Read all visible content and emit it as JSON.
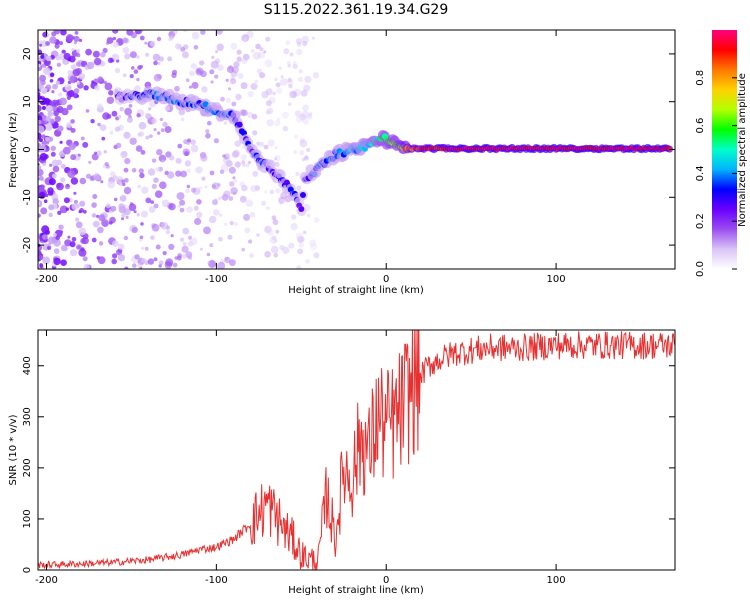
{
  "title": "S115.2022.361.19.34.G29",
  "colors": {
    "snr_line": "#e83030",
    "colormap": [
      "#ffffff",
      "#d9c4f7",
      "#9b4df0",
      "#6a00ff",
      "#0000ff",
      "#00b4ff",
      "#00ffc8",
      "#00ff00",
      "#b4ff00",
      "#ffd200",
      "#ff7800",
      "#ff0000",
      "#ff0080"
    ]
  },
  "chart_data": [
    {
      "type": "heatmap",
      "xlabel": "Height of straight line (km)",
      "ylabel": "Frequency (Hz)",
      "xlim": [
        -205,
        170
      ],
      "ylim": [
        -25,
        25
      ],
      "xticks": [
        -200,
        -100,
        0,
        100
      ],
      "yticks": [
        -20,
        -10,
        0,
        10,
        20
      ],
      "colorbar": {
        "label": "Normalized spectral amplitude",
        "range": [
          0,
          1
        ],
        "ticks": [
          "0.0",
          "0.2",
          "0.4",
          "0.6",
          "0.8"
        ]
      },
      "ridge": [
        {
          "x": -158,
          "y": 11,
          "v": 0.25
        },
        {
          "x": -150,
          "y": 11,
          "v": 0.3
        },
        {
          "x": -140,
          "y": 11.5,
          "v": 0.35
        },
        {
          "x": -130,
          "y": 11,
          "v": 0.35
        },
        {
          "x": -120,
          "y": 10,
          "v": 0.35
        },
        {
          "x": -110,
          "y": 9.5,
          "v": 0.35
        },
        {
          "x": -100,
          "y": 8,
          "v": 0.35
        },
        {
          "x": -90,
          "y": 7,
          "v": 0.35
        },
        {
          "x": -85,
          "y": 4,
          "v": 0.3
        },
        {
          "x": -80,
          "y": 0,
          "v": 0.3
        },
        {
          "x": -75,
          "y": -2,
          "v": 0.35
        },
        {
          "x": -68,
          "y": -4,
          "v": 0.3
        },
        {
          "x": -62,
          "y": -6,
          "v": 0.3
        },
        {
          "x": -55,
          "y": -9,
          "v": 0.3
        },
        {
          "x": -50,
          "y": -12,
          "v": 0.25
        },
        {
          "x": -48,
          "y": -6,
          "v": 0.3
        },
        {
          "x": -40,
          "y": -4,
          "v": 0.35
        },
        {
          "x": -30,
          "y": -1,
          "v": 0.35
        },
        {
          "x": -20,
          "y": 0,
          "v": 0.4
        },
        {
          "x": -10,
          "y": 1,
          "v": 0.45
        },
        {
          "x": -2,
          "y": 2.5,
          "v": 0.55
        },
        {
          "x": 5,
          "y": 1,
          "v": 0.6
        },
        {
          "x": 15,
          "y": 0.2,
          "v": 0.85
        },
        {
          "x": 40,
          "y": 0.2,
          "v": 0.95
        },
        {
          "x": 80,
          "y": 0.2,
          "v": 0.95
        },
        {
          "x": 120,
          "y": 0.2,
          "v": 0.95
        },
        {
          "x": 168,
          "y": 0.2,
          "v": 0.95
        }
      ],
      "noise_region": {
        "x": [
          -205,
          -100
        ],
        "y": [
          -25,
          25
        ],
        "v": [
          0.05,
          0.2
        ]
      }
    },
    {
      "type": "line",
      "xlabel": "Height of straight line (km)",
      "ylabel": "SNR (10 * v/v)",
      "xlim": [
        -205,
        170
      ],
      "ylim": [
        0,
        470
      ],
      "xticks": [
        -200,
        -100,
        0,
        100
      ],
      "yticks": [
        0,
        100,
        200,
        300,
        400
      ],
      "series": [
        {
          "x": [
            -205,
            -180,
            -160,
            -140,
            -120,
            -110,
            -100,
            -90,
            -80,
            -70,
            -60,
            -55,
            -50,
            -45,
            -40,
            -35,
            -30,
            -25,
            -20,
            -15,
            -10,
            -5,
            0,
            5,
            10,
            15,
            20,
            25,
            30,
            40,
            50,
            60,
            70,
            80,
            100,
            120,
            140,
            160,
            170
          ],
          "y": [
            10,
            12,
            15,
            20,
            30,
            40,
            45,
            60,
            90,
            130,
            80,
            60,
            30,
            20,
            20,
            150,
            60,
            200,
            180,
            260,
            230,
            300,
            280,
            290,
            320,
            360,
            380,
            400,
            410,
            425,
            430,
            435,
            435,
            435,
            440,
            440,
            440,
            440,
            440
          ]
        }
      ]
    }
  ]
}
